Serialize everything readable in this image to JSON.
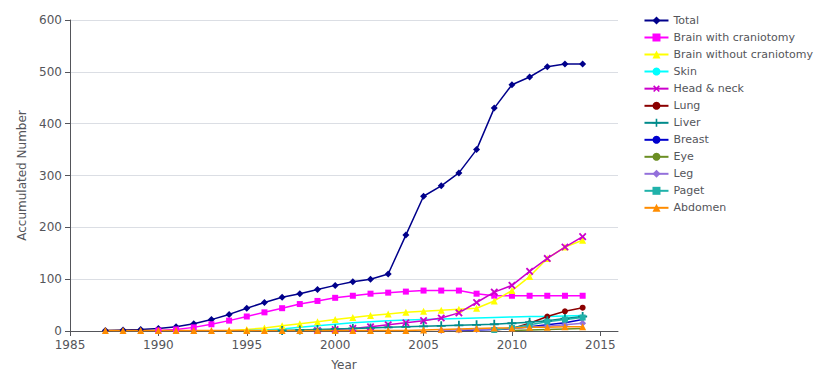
{
  "chart_data": {
    "type": "line",
    "xlabel": "Year",
    "ylabel": "Accumulated Number",
    "xlim": [
      1985,
      2016
    ],
    "xticks": [
      1985,
      1990,
      1995,
      2000,
      2005,
      2010,
      2015
    ],
    "ylim": [
      0,
      600
    ],
    "yticks": [
      0,
      100,
      200,
      300,
      400,
      500,
      600
    ],
    "grid": true,
    "legend": "right",
    "series": [
      {
        "name": "Total",
        "color": "#00008B",
        "marker": "diamond",
        "x": [
          1987,
          1988,
          1989,
          1990,
          1991,
          1992,
          1993,
          1994,
          1995,
          1996,
          1997,
          1998,
          1999,
          2000,
          2001,
          2002,
          2003,
          2004,
          2005,
          2006,
          2007,
          2008,
          2009,
          2010,
          2011,
          2012,
          2013,
          2014
        ],
        "values": [
          1,
          2,
          3,
          5,
          8,
          14,
          22,
          32,
          44,
          55,
          65,
          72,
          80,
          88,
          95,
          100,
          110,
          185,
          260,
          280,
          305,
          350,
          430,
          475,
          490,
          510,
          515,
          515
        ]
      },
      {
        "name": "Brain with craniotomy",
        "color": "#FF00FF",
        "marker": "square",
        "x": [
          1990,
          1991,
          1992,
          1993,
          1994,
          1995,
          1996,
          1997,
          1998,
          1999,
          2000,
          2001,
          2002,
          2003,
          2004,
          2005,
          2006,
          2007,
          2008,
          2009,
          2010,
          2011,
          2012,
          2013,
          2014
        ],
        "values": [
          1,
          3,
          7,
          13,
          20,
          28,
          36,
          44,
          52,
          58,
          64,
          68,
          72,
          74,
          76,
          78,
          78,
          78,
          72,
          68,
          68,
          68,
          68,
          68,
          68
        ]
      },
      {
        "name": "Brain without craniotomy",
        "color": "#FFFF00",
        "marker": "triangle",
        "x": [
          1994,
          1995,
          1996,
          1997,
          1998,
          1999,
          2000,
          2001,
          2002,
          2003,
          2004,
          2005,
          2006,
          2007,
          2008,
          2009,
          2010,
          2011,
          2012,
          2013,
          2014
        ],
        "values": [
          1,
          3,
          6,
          10,
          14,
          18,
          22,
          26,
          30,
          33,
          36,
          38,
          40,
          42,
          44,
          58,
          78,
          105,
          140,
          162,
          175
        ]
      },
      {
        "name": "Skin",
        "color": "#00FFFF",
        "marker": "none",
        "x": [
          1995,
          1996,
          1997,
          1998,
          1999,
          2000,
          2001,
          2002,
          2003,
          2004,
          2005,
          2006,
          2007,
          2008,
          2009,
          2010,
          2011,
          2012,
          2013,
          2014
        ],
        "values": [
          1,
          2,
          4,
          7,
          10,
          13,
          16,
          18,
          20,
          21,
          22,
          23,
          24,
          25,
          26,
          27,
          28,
          28,
          29,
          30
        ]
      },
      {
        "name": "Head & neck",
        "color": "#CC00CC",
        "marker": "x",
        "x": [
          1999,
          2000,
          2001,
          2002,
          2003,
          2004,
          2005,
          2006,
          2007,
          2008,
          2009,
          2010,
          2011,
          2012,
          2013,
          2014
        ],
        "values": [
          1,
          3,
          5,
          8,
          12,
          16,
          20,
          25,
          35,
          55,
          75,
          88,
          115,
          140,
          162,
          182
        ]
      },
      {
        "name": "Lung",
        "color": "#8B0000",
        "marker": "circle",
        "x": [
          2009,
          2010,
          2011,
          2012,
          2013,
          2014
        ],
        "values": [
          2,
          5,
          15,
          28,
          38,
          45
        ]
      },
      {
        "name": "Liver",
        "color": "#008B8B",
        "marker": "plus",
        "x": [
          1997,
          1998,
          1999,
          2000,
          2001,
          2002,
          2003,
          2004,
          2005,
          2006,
          2007,
          2008,
          2009,
          2010,
          2011,
          2012,
          2013,
          2014
        ],
        "values": [
          1,
          2,
          3,
          4,
          5,
          6,
          7,
          8,
          9,
          10,
          11,
          12,
          13,
          15,
          17,
          20,
          24,
          28
        ]
      },
      {
        "name": "Breast",
        "color": "#0000CD",
        "marker": "none",
        "x": [
          2007,
          2008,
          2009,
          2010,
          2011,
          2012,
          2013,
          2014
        ],
        "values": [
          1,
          2,
          3,
          5,
          8,
          12,
          16,
          22
        ]
      },
      {
        "name": "Eye",
        "color": "#6B8E23",
        "marker": "none",
        "x": [
          2010,
          2011,
          2012,
          2013,
          2014
        ],
        "values": [
          1,
          2,
          3,
          4,
          5
        ]
      },
      {
        "name": "Leg",
        "color": "#9370DB",
        "marker": "diamond",
        "x": [
          2006,
          2007,
          2008,
          2009,
          2010,
          2011,
          2012,
          2013,
          2014
        ],
        "values": [
          1,
          2,
          3,
          4,
          5,
          7,
          9,
          12,
          15
        ]
      },
      {
        "name": "Paget",
        "color": "#20B2AA",
        "marker": "square",
        "x": [
          2009,
          2010,
          2011,
          2012,
          2013,
          2014
        ],
        "values": [
          2,
          6,
          12,
          18,
          22,
          26
        ]
      },
      {
        "name": "Abdomen",
        "color": "#FF8C00",
        "marker": "triangle",
        "x": [
          1987,
          1988,
          1989,
          1990,
          1991,
          1992,
          1993,
          1994,
          1995,
          1996,
          1997,
          1998,
          1999,
          2000,
          2001,
          2002,
          2003,
          2004,
          2005,
          2006,
          2007,
          2008,
          2009,
          2010,
          2011,
          2012,
          2013,
          2014
        ],
        "values": [
          1,
          1,
          1,
          1,
          1,
          1,
          1,
          1,
          1,
          1,
          1,
          1,
          1,
          1,
          1,
          1,
          1,
          1,
          2,
          3,
          4,
          5,
          6,
          6,
          7,
          7,
          8,
          8
        ]
      }
    ]
  }
}
